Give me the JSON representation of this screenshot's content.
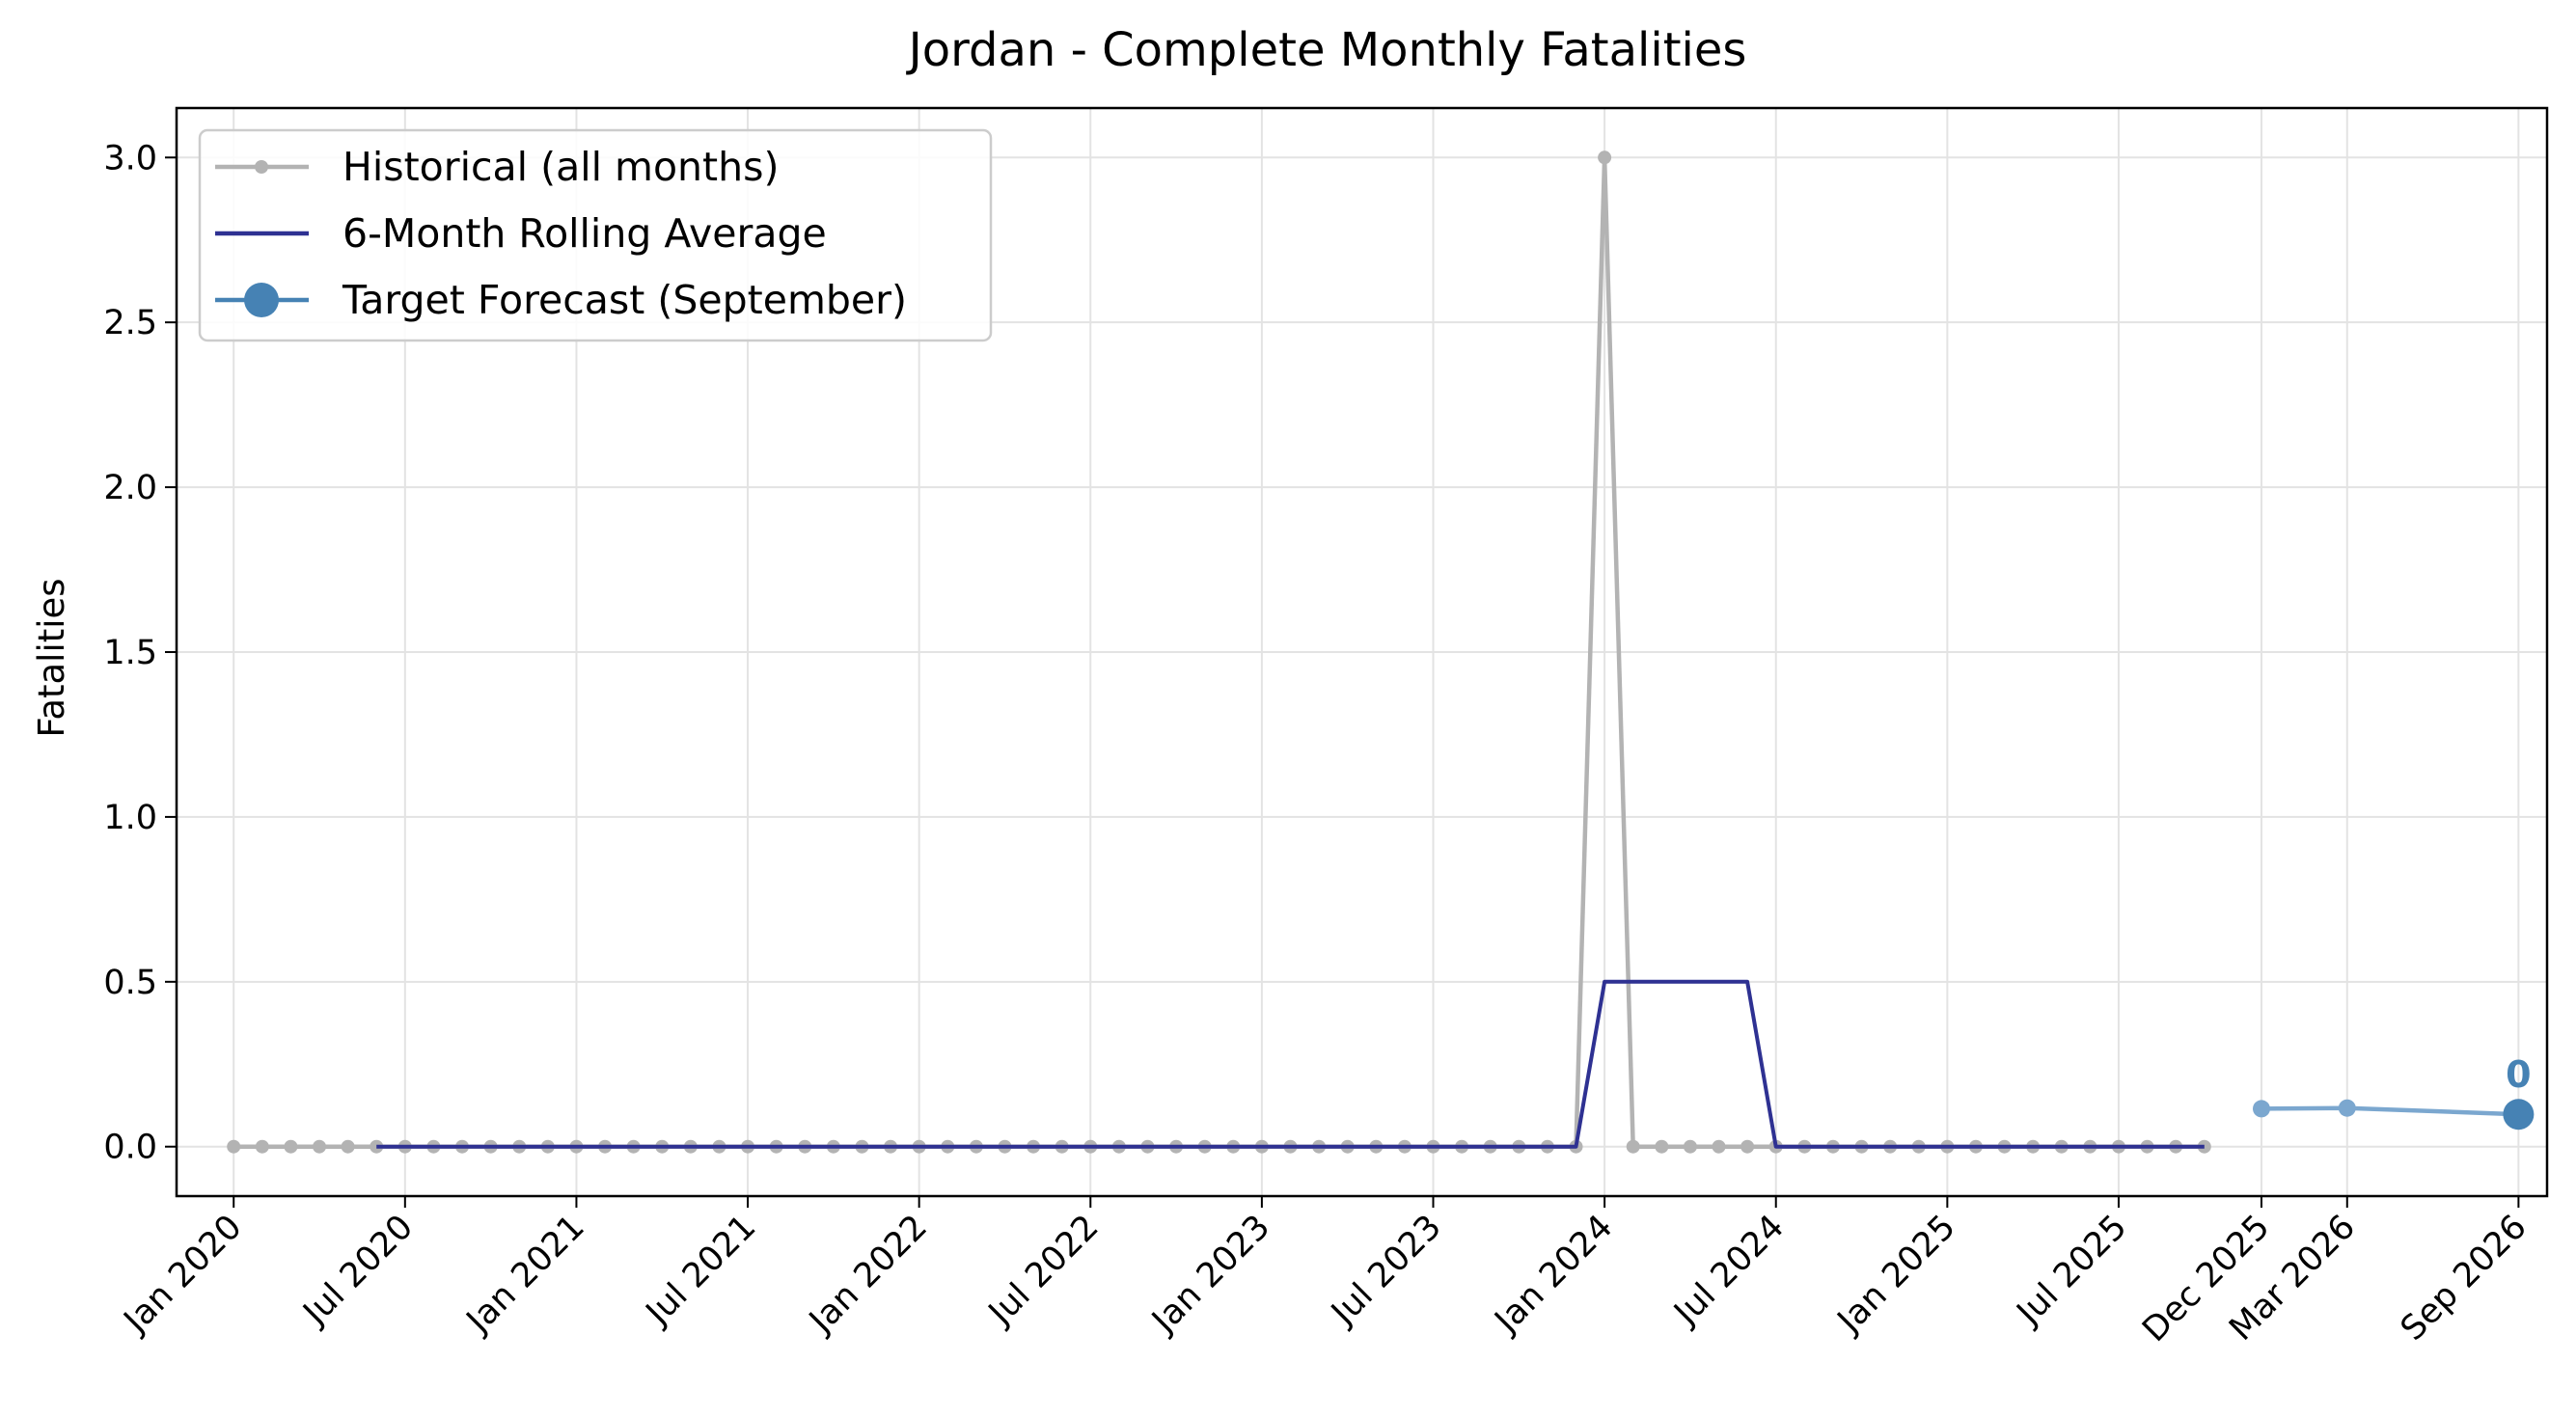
{
  "chart_data": {
    "type": "line",
    "title": "Jordan - Complete Monthly Fatalities",
    "xlabel": "",
    "ylabel": "Fatalities",
    "x_axis": {
      "type": "date",
      "range": [
        "2019-11",
        "2026-10"
      ]
    },
    "ylim": [
      -0.15,
      3.15
    ],
    "grid": true,
    "legend_position": "top-left",
    "y_ticks": [
      {
        "value": 0.0,
        "label": "0.0"
      },
      {
        "value": 0.5,
        "label": "0.5"
      },
      {
        "value": 1.0,
        "label": "1.0"
      },
      {
        "value": 1.5,
        "label": "1.5"
      },
      {
        "value": 2.0,
        "label": "2.0"
      },
      {
        "value": 2.5,
        "label": "2.5"
      },
      {
        "value": 3.0,
        "label": "3.0"
      }
    ],
    "x_ticks": [
      {
        "date": "2020-01",
        "label": "Jan 2020"
      },
      {
        "date": "2020-07",
        "label": "Jul 2020"
      },
      {
        "date": "2021-01",
        "label": "Jan 2021"
      },
      {
        "date": "2021-07",
        "label": "Jul 2021"
      },
      {
        "date": "2022-01",
        "label": "Jan 2022"
      },
      {
        "date": "2022-07",
        "label": "Jul 2022"
      },
      {
        "date": "2023-01",
        "label": "Jan 2023"
      },
      {
        "date": "2023-07",
        "label": "Jul 2023"
      },
      {
        "date": "2024-01",
        "label": "Jan 2024"
      },
      {
        "date": "2024-07",
        "label": "Jul 2024"
      },
      {
        "date": "2025-01",
        "label": "Jan 2025"
      },
      {
        "date": "2025-07",
        "label": "Jul 2025"
      },
      {
        "date": "2025-12",
        "label": "Dec 2025"
      },
      {
        "date": "2026-03",
        "label": "Mar 2026"
      },
      {
        "date": "2026-09",
        "label": "Sep 2026"
      }
    ],
    "series": [
      {
        "name": "Historical (all months)",
        "color": "#b3b3b3",
        "marker": "dot",
        "start": "2020-01",
        "values": [
          0,
          0,
          0,
          0,
          0,
          0,
          0,
          0,
          0,
          0,
          0,
          0,
          0,
          0,
          0,
          0,
          0,
          0,
          0,
          0,
          0,
          0,
          0,
          0,
          0,
          0,
          0,
          0,
          0,
          0,
          0,
          0,
          0,
          0,
          0,
          0,
          0,
          0,
          0,
          0,
          0,
          0,
          0,
          0,
          0,
          0,
          0,
          0,
          3,
          0,
          0,
          0,
          0,
          0,
          0,
          0,
          0,
          0,
          0,
          0,
          0,
          0,
          0,
          0,
          0,
          0,
          0,
          0,
          0,
          0
        ]
      },
      {
        "name": "6-Month Rolling Average",
        "color": "#2e3192",
        "marker": "none",
        "start": "2020-06",
        "values": [
          0,
          0,
          0,
          0,
          0,
          0,
          0,
          0,
          0,
          0,
          0,
          0,
          0,
          0,
          0,
          0,
          0,
          0,
          0,
          0,
          0,
          0,
          0,
          0,
          0,
          0,
          0,
          0,
          0,
          0,
          0,
          0,
          0,
          0,
          0,
          0,
          0,
          0,
          0,
          0,
          0,
          0,
          0,
          0.5,
          0.5,
          0.5,
          0.5,
          0.5,
          0.5,
          0,
          0,
          0,
          0,
          0,
          0,
          0,
          0,
          0,
          0,
          0,
          0,
          0,
          0,
          0,
          0
        ]
      },
      {
        "name": "Forecast path",
        "color": "#7ba7cf",
        "marker": "dot",
        "points": [
          {
            "date": "2025-12",
            "value": 0.115
          },
          {
            "date": "2026-03",
            "value": 0.117
          },
          {
            "date": "2026-09",
            "value": 0.098
          }
        ]
      },
      {
        "name": "Target Forecast (September)",
        "color": "#4682b4",
        "marker": "large-dot",
        "points": [
          {
            "date": "2026-09",
            "value": 0.098
          }
        ],
        "annotation": "0"
      }
    ],
    "legend": [
      {
        "label": "Historical (all months)",
        "color": "#b3b3b3",
        "style": "line-dot"
      },
      {
        "label": "6-Month Rolling Average",
        "color": "#2e3192",
        "style": "line"
      },
      {
        "label": "Target Forecast (September)",
        "color": "#4682b4",
        "style": "line-large-dot"
      }
    ]
  }
}
